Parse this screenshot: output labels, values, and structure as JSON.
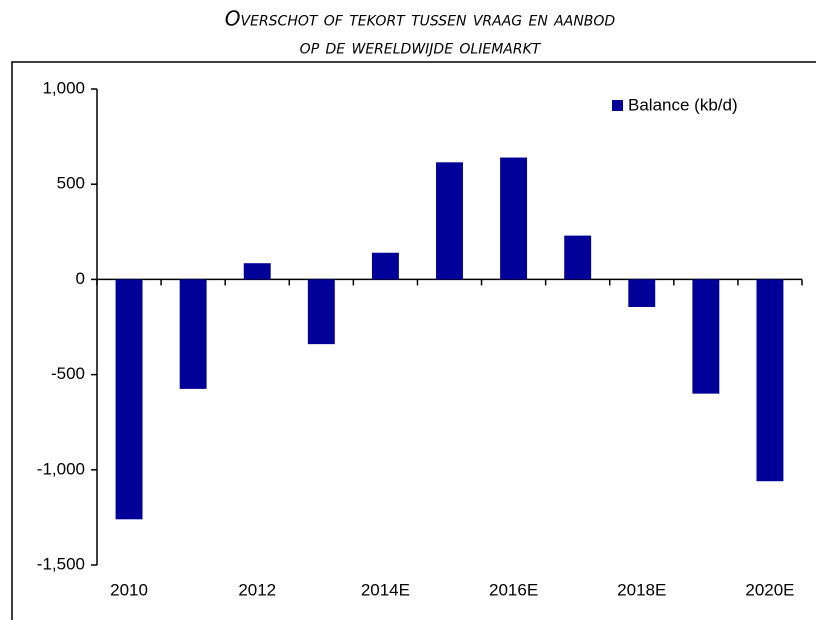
{
  "chart_data": {
    "type": "bar",
    "title": [
      "Overschot of tekort tussen vraag en aanbod",
      "op de wereldwijde oliemarkt"
    ],
    "categories": [
      "2010",
      null,
      "2012",
      null,
      "2014E",
      null,
      "2016E",
      null,
      "2018E",
      null,
      "2020E"
    ],
    "series": [
      {
        "name": "Balance (kb/d)",
        "color": "#000099",
        "values": [
          -1260,
          -575,
          85,
          -340,
          140,
          615,
          640,
          230,
          -145,
          -600,
          -1060
        ]
      }
    ],
    "ylim": [
      -1500,
      1000
    ],
    "yticks": [
      {
        "value": -1500,
        "label": "-1,500"
      },
      {
        "value": -1000,
        "label": "-1,000"
      },
      -500,
      0,
      500,
      {
        "value": 1000,
        "label": "1,000"
      }
    ],
    "legend": "top-right"
  }
}
